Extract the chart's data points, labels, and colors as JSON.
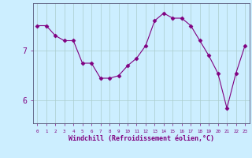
{
  "x": [
    0,
    1,
    2,
    3,
    4,
    5,
    6,
    7,
    8,
    9,
    10,
    11,
    12,
    13,
    14,
    15,
    16,
    17,
    18,
    19,
    20,
    21,
    22,
    23
  ],
  "y": [
    7.5,
    7.5,
    7.3,
    7.2,
    7.2,
    6.75,
    6.75,
    6.45,
    6.45,
    6.5,
    6.7,
    6.85,
    7.1,
    7.6,
    7.75,
    7.65,
    7.65,
    7.5,
    7.2,
    6.9,
    6.55,
    5.85,
    6.55,
    7.1
  ],
  "line_color": "#800080",
  "marker": "D",
  "marker_size": 2.5,
  "bg_color": "#cceeff",
  "grid_color": "#aacccc",
  "xlabel": "Windchill (Refroidissement éolien,°C)",
  "xlabel_color": "#800080",
  "tick_color": "#800080",
  "yticks": [
    6,
    7
  ],
  "ylim": [
    5.55,
    7.95
  ],
  "xlim": [
    -0.5,
    23.5
  ],
  "xtick_labels": [
    "0",
    "1",
    "2",
    "3",
    "4",
    "5",
    "6",
    "7",
    "8",
    "9",
    "10",
    "11",
    "12",
    "13",
    "14",
    "15",
    "16",
    "17",
    "18",
    "19",
    "20",
    "21",
    "22",
    "23"
  ]
}
